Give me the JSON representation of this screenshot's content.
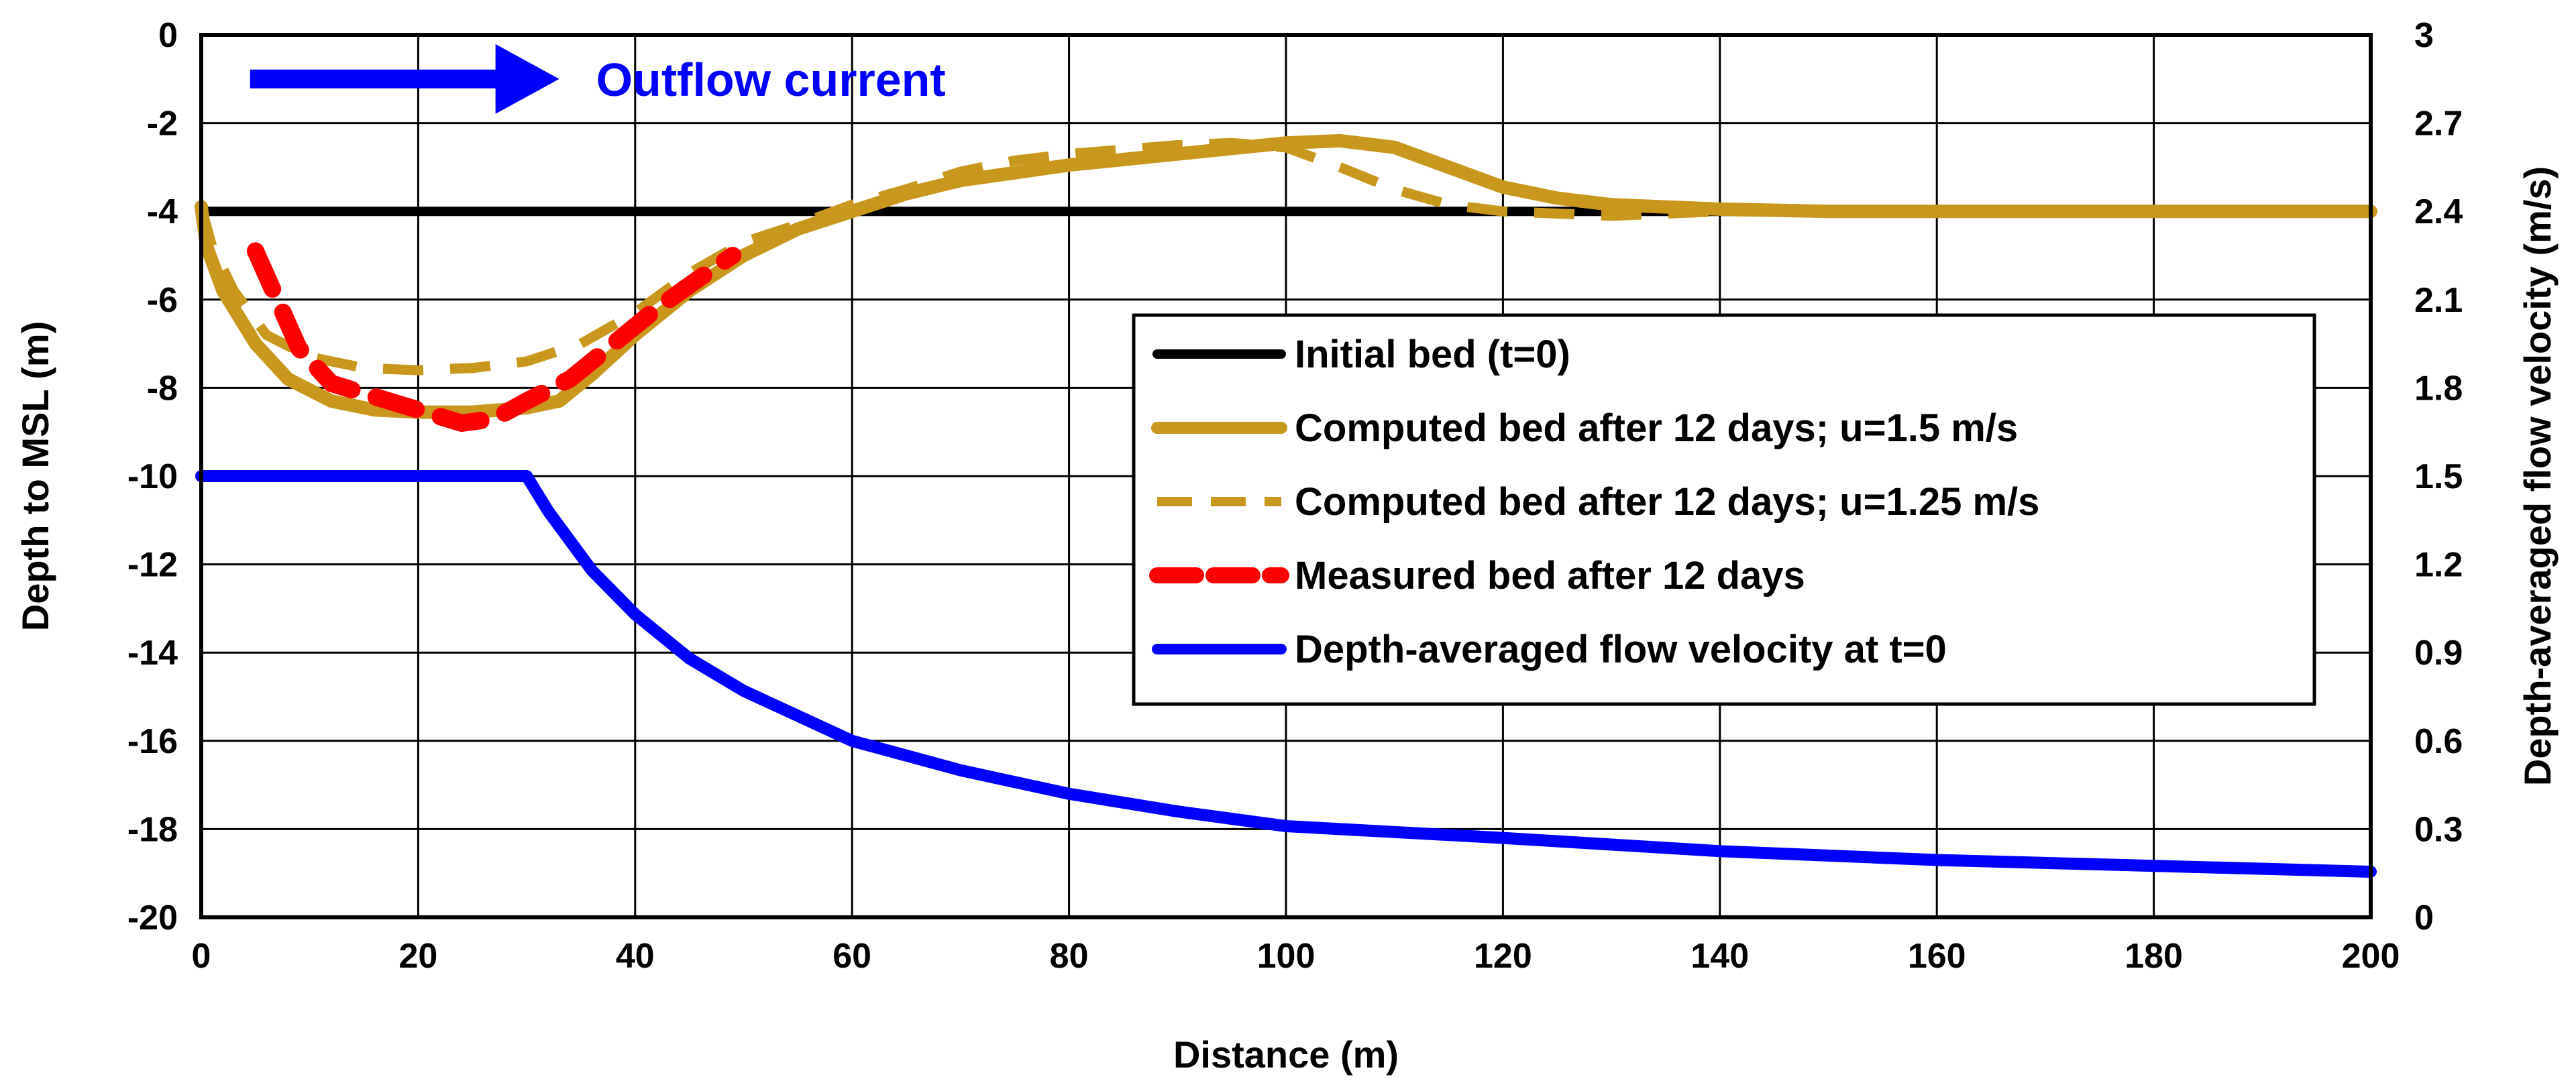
{
  "chart_data": {
    "type": "line",
    "title": "",
    "xlabel": "Distance (m)",
    "ylabel": "Depth to MSL (m)",
    "y2label": "Depth-averaged flow velocity (m/s)",
    "xlim": [
      0,
      200
    ],
    "ylim": [
      -20,
      0
    ],
    "y2lim": [
      0,
      3
    ],
    "x_ticks": [
      "0",
      "20",
      "40",
      "60",
      "80",
      "100",
      "120",
      "140",
      "160",
      "180",
      "200"
    ],
    "y_ticks": [
      "0",
      "-2",
      "-4",
      "-6",
      "-8",
      "-10",
      "-12",
      "-14",
      "-16",
      "-18",
      "-20"
    ],
    "y2_ticks": [
      "3",
      "2.7",
      "2.4",
      "2.1",
      "1.8",
      "1.5",
      "1.2",
      "0.9",
      "0.6",
      "0.3",
      "0"
    ],
    "grid": true,
    "legend_position": "center-right",
    "annotation": {
      "text": "Outflow current",
      "color": "#0000ff",
      "arrow_from": [
        4.5,
        -1
      ],
      "arrow_to": [
        33,
        -1
      ]
    },
    "series": [
      {
        "name": "Initial bed (t=0)",
        "axis": "left",
        "color": "#000000",
        "dash": "solid",
        "points": [
          [
            0,
            -4
          ],
          [
            200,
            -4
          ]
        ]
      },
      {
        "name": "Computed bed after 12 days; u=1.5 m/s",
        "axis": "left",
        "color": "#c9971c",
        "dash": "solid",
        "points": [
          [
            0,
            -3.9
          ],
          [
            0.5,
            -4.8
          ],
          [
            2,
            -5.8
          ],
          [
            5,
            -7.0
          ],
          [
            8,
            -7.8
          ],
          [
            12,
            -8.3
          ],
          [
            16,
            -8.5
          ],
          [
            20,
            -8.55
          ],
          [
            25,
            -8.55
          ],
          [
            30,
            -8.45
          ],
          [
            33,
            -8.3
          ],
          [
            36,
            -7.7
          ],
          [
            40,
            -6.8
          ],
          [
            45,
            -5.8
          ],
          [
            50,
            -5.0
          ],
          [
            55,
            -4.4
          ],
          [
            60,
            -4.0
          ],
          [
            65,
            -3.6
          ],
          [
            70,
            -3.3
          ],
          [
            80,
            -2.95
          ],
          [
            90,
            -2.7
          ],
          [
            100,
            -2.45
          ],
          [
            105,
            -2.4
          ],
          [
            110,
            -2.55
          ],
          [
            115,
            -3.0
          ],
          [
            120,
            -3.45
          ],
          [
            125,
            -3.7
          ],
          [
            130,
            -3.85
          ],
          [
            140,
            -3.95
          ],
          [
            150,
            -4.0
          ],
          [
            200,
            -4.0
          ]
        ]
      },
      {
        "name": "Computed bed after 12 days; u=1.25 m/s",
        "axis": "left",
        "color": "#c9971c",
        "dash": "dashed",
        "points": [
          [
            0,
            -3.9
          ],
          [
            1,
            -4.8
          ],
          [
            3,
            -5.8
          ],
          [
            6,
            -6.8
          ],
          [
            10,
            -7.3
          ],
          [
            15,
            -7.55
          ],
          [
            20,
            -7.6
          ],
          [
            25,
            -7.55
          ],
          [
            30,
            -7.4
          ],
          [
            35,
            -7.0
          ],
          [
            40,
            -6.3
          ],
          [
            45,
            -5.4
          ],
          [
            50,
            -4.7
          ],
          [
            55,
            -4.3
          ],
          [
            60,
            -3.85
          ],
          [
            65,
            -3.5
          ],
          [
            70,
            -3.1
          ],
          [
            75,
            -2.85
          ],
          [
            80,
            -2.7
          ],
          [
            85,
            -2.6
          ],
          [
            90,
            -2.5
          ],
          [
            95,
            -2.45
          ],
          [
            100,
            -2.55
          ],
          [
            105,
            -3.0
          ],
          [
            110,
            -3.5
          ],
          [
            115,
            -3.85
          ],
          [
            120,
            -4.0
          ],
          [
            130,
            -4.1
          ],
          [
            140,
            -4.0
          ],
          [
            200,
            -4.0
          ]
        ]
      },
      {
        "name": "Measured bed after 12 days",
        "axis": "left",
        "color": "#ff0000",
        "dash": "dashed",
        "points": [
          [
            5,
            -4.9
          ],
          [
            7,
            -6.0
          ],
          [
            9,
            -7.1
          ],
          [
            12,
            -7.9
          ],
          [
            16,
            -8.2
          ],
          [
            20,
            -8.5
          ],
          [
            24,
            -8.8
          ],
          [
            27,
            -8.7
          ],
          [
            30,
            -8.3
          ],
          [
            34,
            -7.8
          ],
          [
            38,
            -7.0
          ],
          [
            42,
            -6.2
          ],
          [
            46,
            -5.5
          ],
          [
            49,
            -5.0
          ]
        ]
      },
      {
        "name": "Depth-averaged flow velocity at t=0",
        "axis": "right",
        "color": "#0000ff",
        "dash": "solid",
        "points": [
          [
            0,
            1.5
          ],
          [
            30,
            1.5
          ],
          [
            32,
            1.38
          ],
          [
            36,
            1.18
          ],
          [
            40,
            1.03
          ],
          [
            45,
            0.88
          ],
          [
            50,
            0.77
          ],
          [
            60,
            0.6
          ],
          [
            70,
            0.5
          ],
          [
            80,
            0.42
          ],
          [
            90,
            0.36
          ],
          [
            100,
            0.31
          ],
          [
            120,
            0.27
          ],
          [
            140,
            0.225
          ],
          [
            160,
            0.195
          ],
          [
            180,
            0.175
          ],
          [
            200,
            0.155
          ]
        ]
      }
    ]
  }
}
